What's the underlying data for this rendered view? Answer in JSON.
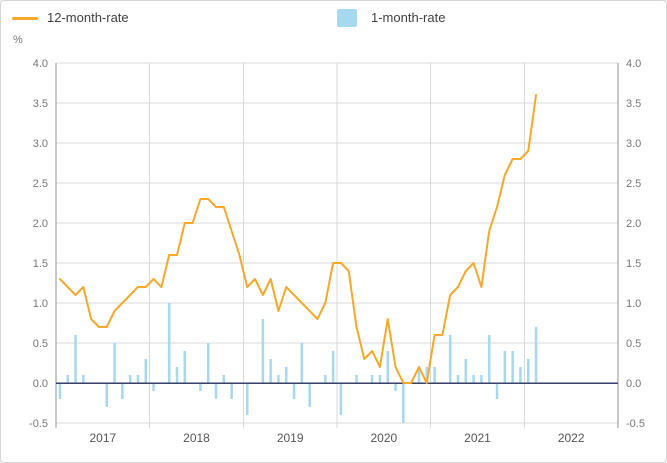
{
  "chart_data": {
    "type": "combo",
    "title": "",
    "legend_position": "top",
    "grid": true,
    "x_axis": {
      "year_labels": [
        "2017",
        "2018",
        "2019",
        "2020",
        "2021",
        "2022"
      ],
      "range_start": "2017-01",
      "range_end": "2022-12"
    },
    "y_axis": {
      "unit": "%",
      "min": -0.5,
      "max": 4.0,
      "tick_step": 0.5,
      "ticks": [
        4.0,
        3.5,
        3.0,
        2.5,
        2.0,
        1.5,
        1.0,
        0.5,
        0.0,
        -0.5
      ],
      "labels_both_sides": true
    },
    "months": [
      "2017-01",
      "2017-02",
      "2017-03",
      "2017-04",
      "2017-05",
      "2017-06",
      "2017-07",
      "2017-08",
      "2017-09",
      "2017-10",
      "2017-11",
      "2017-12",
      "2018-01",
      "2018-02",
      "2018-03",
      "2018-04",
      "2018-05",
      "2018-06",
      "2018-07",
      "2018-08",
      "2018-09",
      "2018-10",
      "2018-11",
      "2018-12",
      "2019-01",
      "2019-02",
      "2019-03",
      "2019-04",
      "2019-05",
      "2019-06",
      "2019-07",
      "2019-08",
      "2019-09",
      "2019-10",
      "2019-11",
      "2019-12",
      "2020-01",
      "2020-02",
      "2020-03",
      "2020-04",
      "2020-05",
      "2020-06",
      "2020-07",
      "2020-08",
      "2020-09",
      "2020-10",
      "2020-11",
      "2020-12",
      "2021-01",
      "2021-02",
      "2021-03",
      "2021-04",
      "2021-05",
      "2021-06",
      "2021-07",
      "2021-08",
      "2021-09",
      "2021-10",
      "2021-11",
      "2021-12",
      "2022-01",
      "2022-02"
    ],
    "series": [
      {
        "name": "12-month-rate",
        "type": "line",
        "color": "#F6A82D",
        "values": [
          1.3,
          1.2,
          1.1,
          1.2,
          0.8,
          0.7,
          0.7,
          0.9,
          1.0,
          1.1,
          1.2,
          1.2,
          1.3,
          1.2,
          1.6,
          1.6,
          2.0,
          2.0,
          2.3,
          2.3,
          2.2,
          2.2,
          1.9,
          1.6,
          1.2,
          1.3,
          1.1,
          1.3,
          0.9,
          1.2,
          1.1,
          1.0,
          0.9,
          0.8,
          1.0,
          1.5,
          1.5,
          1.4,
          0.7,
          0.3,
          0.4,
          0.2,
          0.8,
          0.2,
          0.0,
          0.0,
          0.2,
          0.0,
          0.6,
          0.6,
          1.1,
          1.2,
          1.4,
          1.5,
          1.2,
          1.9,
          2.2,
          2.6,
          2.8,
          2.8,
          2.9,
          3.6
        ]
      },
      {
        "name": "1-month-rate",
        "type": "bar",
        "color": "#A6D9EF",
        "values": [
          -0.2,
          0.1,
          0.6,
          0.1,
          0.0,
          0.0,
          -0.3,
          0.5,
          -0.2,
          0.1,
          0.1,
          0.3,
          -0.1,
          0.0,
          1.0,
          0.2,
          0.4,
          0.0,
          -0.1,
          0.5,
          -0.2,
          0.1,
          -0.2,
          0.0,
          -0.4,
          0.0,
          0.8,
          0.3,
          0.1,
          0.2,
          -0.2,
          0.5,
          -0.3,
          0.0,
          0.1,
          0.4,
          -0.4,
          0.0,
          0.1,
          0.0,
          0.1,
          0.1,
          0.4,
          -0.1,
          -0.5,
          0.0,
          0.2,
          0.2,
          0.2,
          0.0,
          0.6,
          0.1,
          0.3,
          0.1,
          0.1,
          0.6,
          -0.2,
          0.4,
          0.4,
          0.2,
          0.3,
          0.7
        ]
      }
    ],
    "colors": {
      "grid": "#D9D9D9",
      "axis_line": "#8F8F8F",
      "zero_line": "#3A4168",
      "tick_label": "#767676",
      "year_label": "#555555"
    }
  }
}
